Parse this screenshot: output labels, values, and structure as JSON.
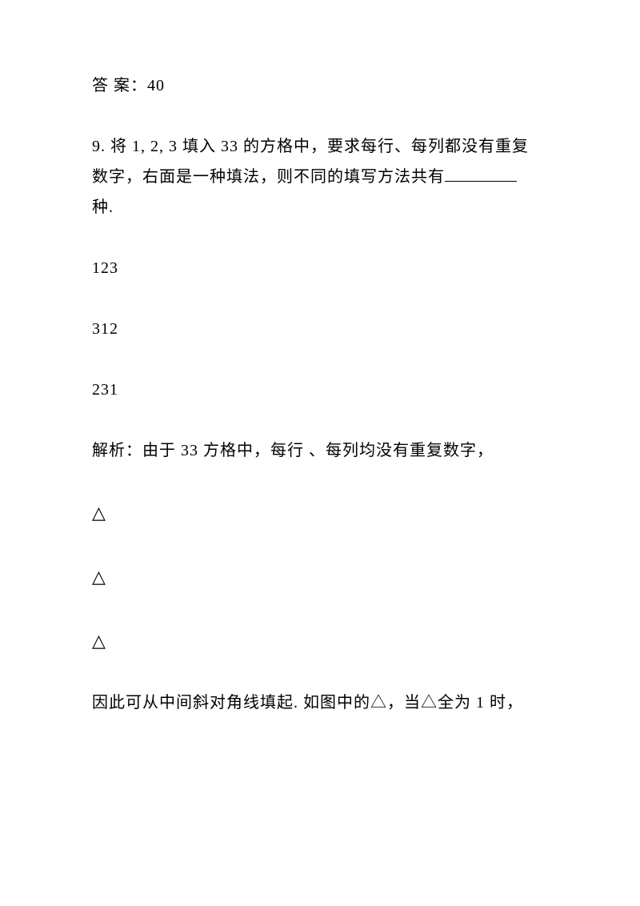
{
  "doc": {
    "answer_label": "答 案：",
    "answer_value": "40",
    "q9_num": "9. ",
    "q9_text_line1": "将 1, 2, 3 填入 33 的方格中，要求每行、每列都没有重复",
    "q9_text_line2": "数字，右面是一种填法，则不同的填写方法共有",
    "q9_text_line3": "种.",
    "grid_row1": "123",
    "grid_row2": "312",
    "grid_row3": "231",
    "analysis_label": "解析：",
    "analysis_text": "由于 33 方格中，每行 、每列均没有重复数字，",
    "triangle1": "△",
    "triangle2": "△",
    "triangle3": "△",
    "conclusion": "因此可从中间斜对角线填起. 如图中的△，当△全为 1 时，"
  },
  "style": {
    "font_size": 20,
    "line_spacing": 38,
    "text_color": "#000000",
    "background_color": "#ffffff"
  }
}
